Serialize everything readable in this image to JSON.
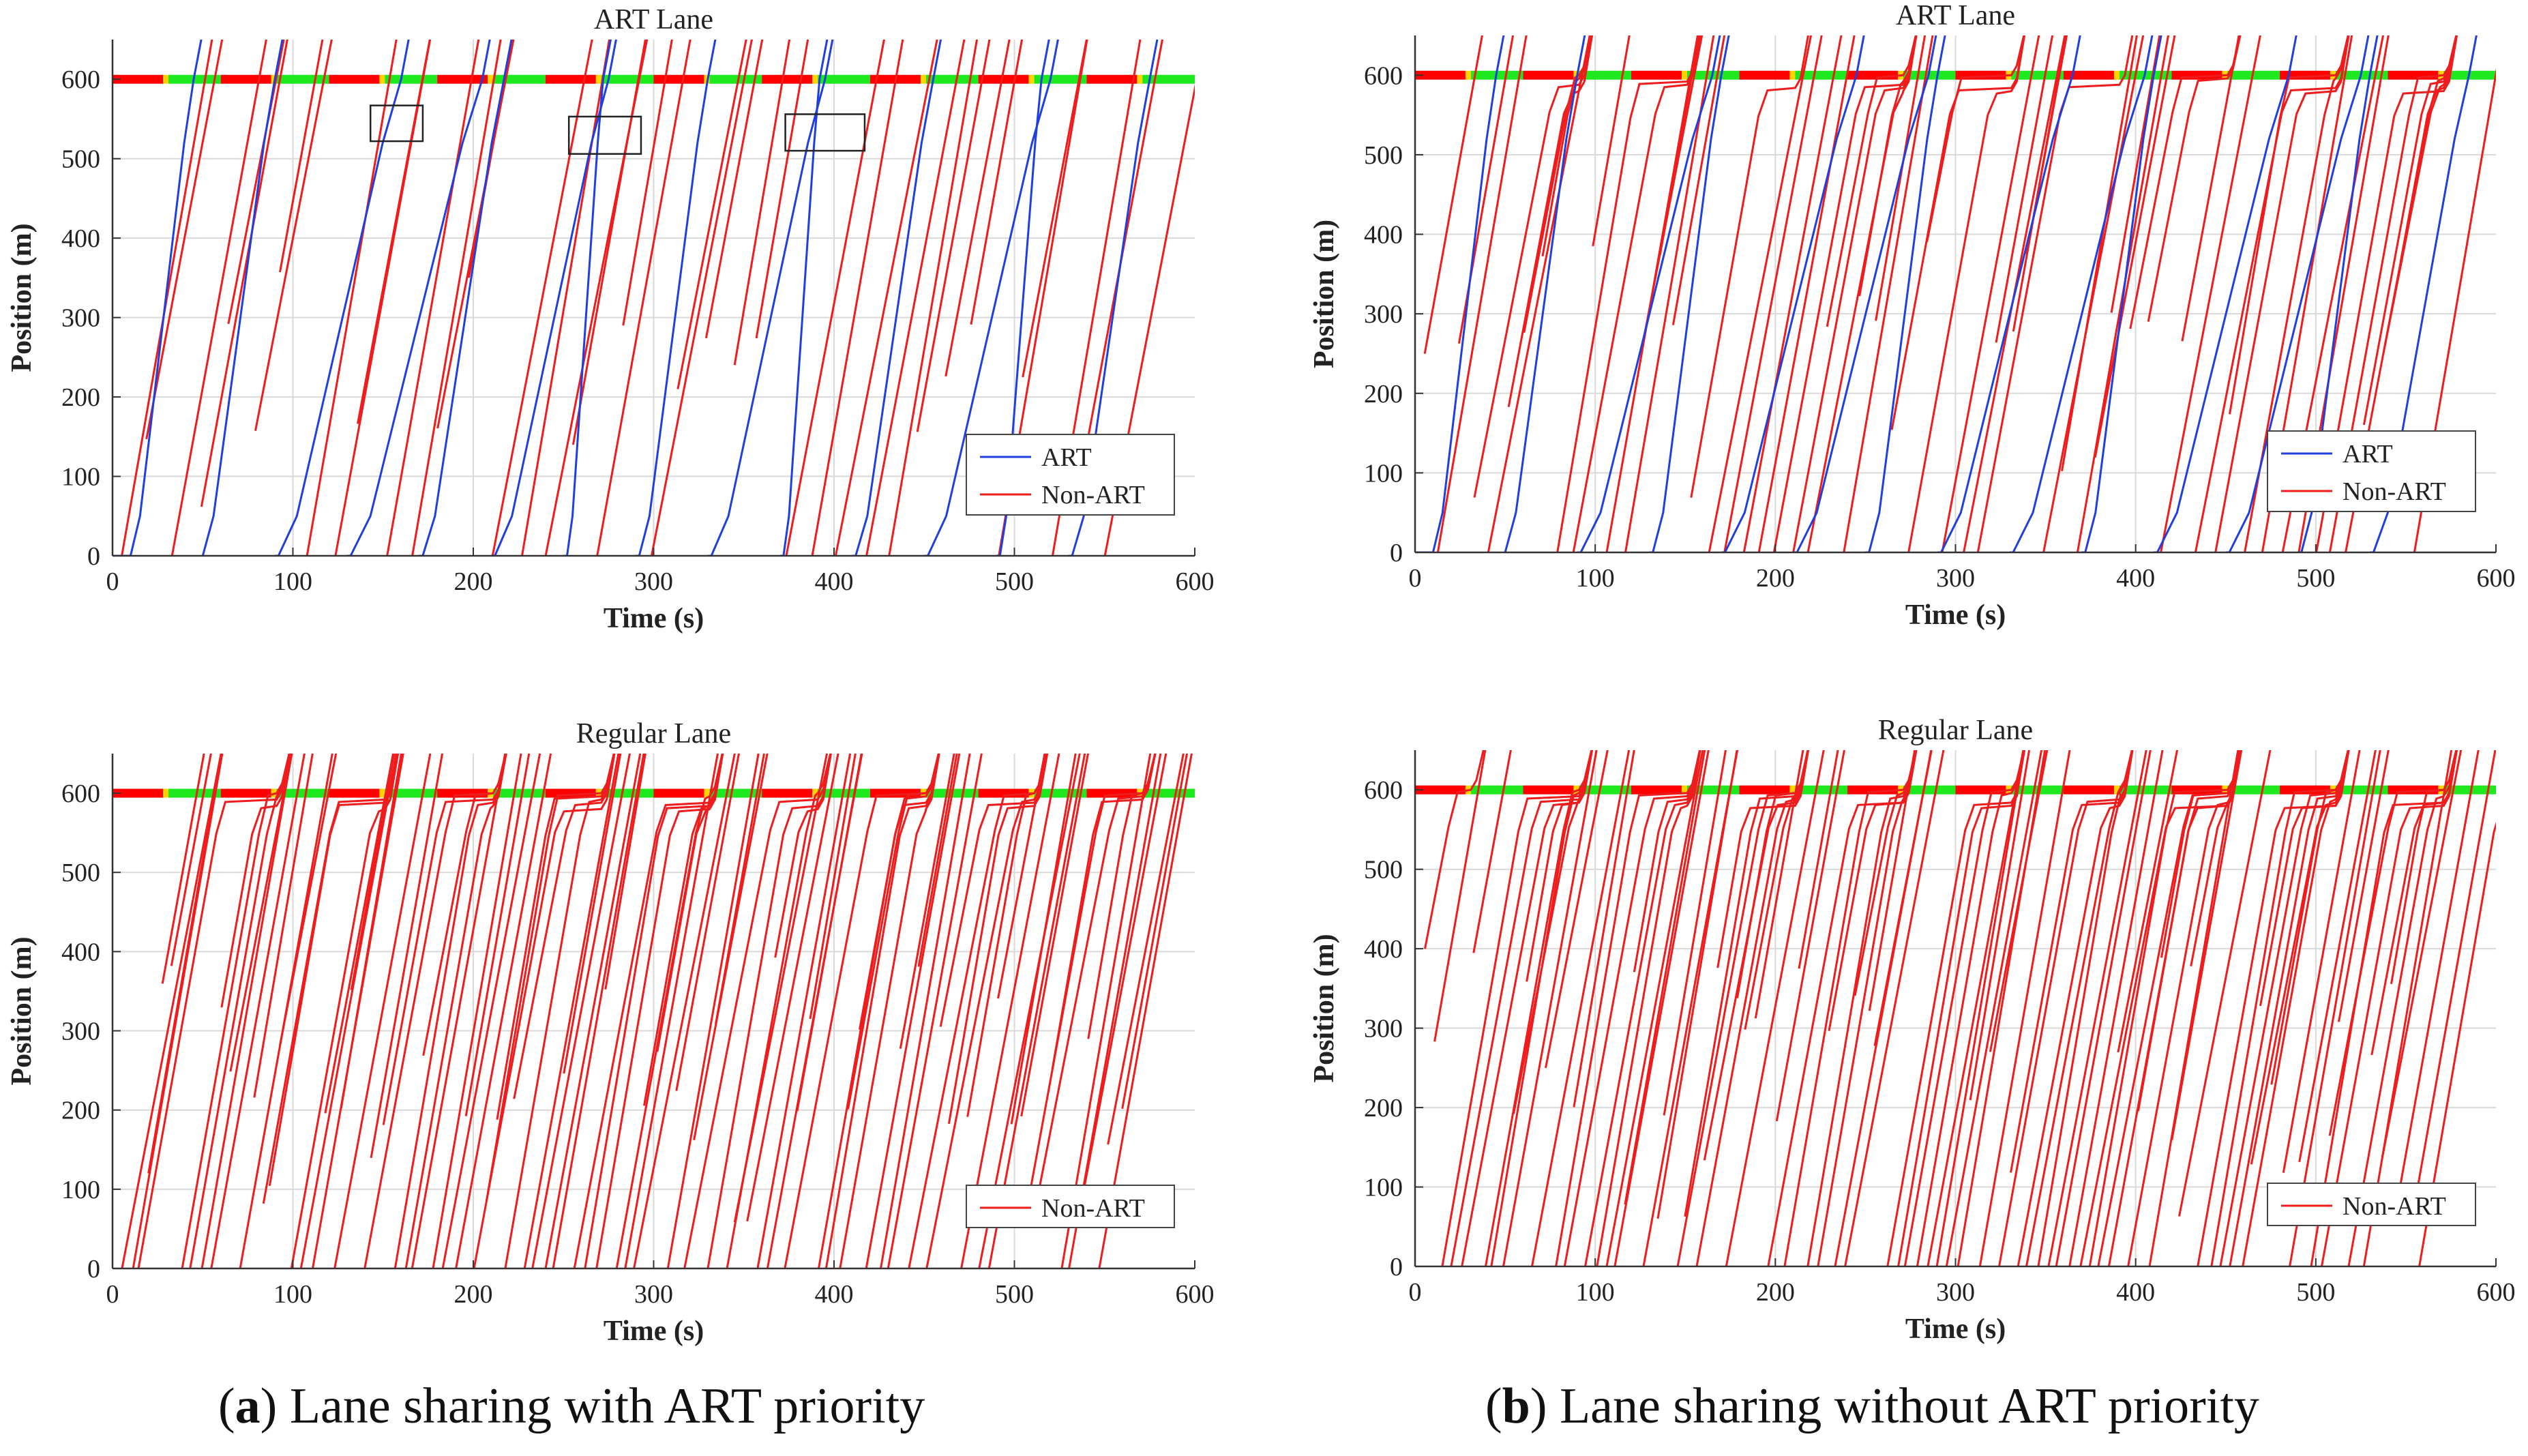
{
  "figure": {
    "captions": [
      {
        "letter": "a",
        "text": " Lane sharing with ART priority"
      },
      {
        "letter": "b",
        "text": " Lane sharing without ART priority"
      }
    ],
    "paren_open": "(",
    "paren_close": ")"
  },
  "colors": {
    "art": "#1f3fe0",
    "non_art": "#ee1c1c",
    "signal_red": "#ff0000",
    "signal_green": "#1ee81e",
    "signal_yellow": "#ffd200",
    "grid": "#d9d9d9"
  },
  "chart_data": [
    {
      "id": "a-top",
      "type": "line",
      "title": "ART Lane",
      "xlabel": "Time (s)",
      "ylabel": "Position (m)",
      "xlim": [
        0,
        600
      ],
      "ylim": [
        0,
        650
      ],
      "xticks": [
        0,
        100,
        200,
        300,
        400,
        500,
        600
      ],
      "yticks": [
        0,
        100,
        200,
        300,
        400,
        500,
        600
      ],
      "grid": true,
      "legend_position": "bottom-right",
      "legend": [
        "ART",
        "Non-ART"
      ],
      "signal": {
        "position": 600,
        "cycle": 60,
        "red_duration": 28,
        "yellow_duration": 3,
        "start": 0
      },
      "art_trajectories": [
        {
          "dwell_start": 0,
          "depart": 10,
          "arrival_600": 45
        },
        {
          "dwell_start": 50,
          "depart": 50,
          "arrival_600": 90
        },
        {
          "dwell_start": 90,
          "depart": 92,
          "arrival_600": 160
        },
        {
          "dwell_start": 130,
          "depart": 132,
          "arrival_600": 205
        },
        {
          "dwell_start": 170,
          "depart": 172,
          "arrival_600": 217
        },
        {
          "dwell_start": 210,
          "depart": 212,
          "arrival_600": 275
        },
        {
          "dwell_start": 250,
          "depart": 252,
          "arrival_600": 272
        },
        {
          "dwell_start": 290,
          "depart": 292,
          "arrival_600": 330
        },
        {
          "dwell_start": 330,
          "depart": 332,
          "arrival_600": 395
        },
        {
          "dwell_start": 370,
          "depart": 372,
          "arrival_600": 392
        },
        {
          "dwell_start": 410,
          "depart": 412,
          "arrival_600": 455
        },
        {
          "dwell_start": 450,
          "depart": 452,
          "arrival_600": 520
        },
        {
          "dwell_start": 490,
          "depart": 492,
          "arrival_600": 515
        },
        {
          "dwell_start": 530,
          "depart": 532,
          "arrival_600": 575
        }
      ],
      "nonart_count": 38,
      "stopping": false,
      "annotations": [
        {
          "type": "box",
          "x": [
            143,
            172
          ],
          "y": [
            522,
            567
          ]
        },
        {
          "type": "box",
          "x": [
            253,
            293
          ],
          "y": [
            506,
            553
          ]
        },
        {
          "type": "box",
          "x": [
            373,
            417
          ],
          "y": [
            510,
            556
          ]
        }
      ]
    },
    {
      "id": "a-bottom",
      "type": "line",
      "title": "Regular Lane",
      "xlabel": "Time (s)",
      "ylabel": "Position (m)",
      "xlim": [
        0,
        600
      ],
      "ylim": [
        0,
        650
      ],
      "xticks": [
        0,
        100,
        200,
        300,
        400,
        500,
        600
      ],
      "yticks": [
        0,
        100,
        200,
        300,
        400,
        500,
        600
      ],
      "grid": true,
      "legend_position": "bottom-right",
      "legend": [
        "Non-ART"
      ],
      "signal": {
        "position": 600,
        "cycle": 60,
        "red_duration": 28,
        "yellow_duration": 3,
        "start": 0
      },
      "art_trajectories": [],
      "nonart_count": 100,
      "stopping": true,
      "annotations": []
    },
    {
      "id": "b-top",
      "type": "line",
      "title": "ART Lane",
      "xlabel": "Time (s)",
      "ylabel": "Position (m)",
      "xlim": [
        0,
        600
      ],
      "ylim": [
        0,
        650
      ],
      "xticks": [
        0,
        100,
        200,
        300,
        400,
        500,
        600
      ],
      "yticks": [
        0,
        100,
        200,
        300,
        400,
        500,
        600
      ],
      "grid": true,
      "legend_position": "bottom-right",
      "legend": [
        "ART",
        "Non-ART"
      ],
      "signal": {
        "position": 600,
        "cycle": 60,
        "red_duration": 28,
        "yellow_duration": 3,
        "start": 0
      },
      "art_trajectories": [
        {
          "dwell_start": 0,
          "depart": 10,
          "arrival_600": 45
        },
        {
          "dwell_start": 50,
          "depart": 50,
          "arrival_600": 90
        },
        {
          "dwell_start": 90,
          "depart": 92,
          "arrival_600": 165
        },
        {
          "dwell_start": 130,
          "depart": 132,
          "arrival_600": 170
        },
        {
          "dwell_start": 170,
          "depart": 172,
          "arrival_600": 245
        },
        {
          "dwell_start": 210,
          "depart": 212,
          "arrival_600": 285
        },
        {
          "dwell_start": 250,
          "depart": 252,
          "arrival_600": 290
        },
        {
          "dwell_start": 290,
          "depart": 292,
          "arrival_600": 365
        },
        {
          "dwell_start": 330,
          "depart": 332,
          "arrival_600": 405
        },
        {
          "dwell_start": 370,
          "depart": 372,
          "arrival_600": 410
        },
        {
          "dwell_start": 410,
          "depart": 412,
          "arrival_600": 485
        },
        {
          "dwell_start": 450,
          "depart": 452,
          "arrival_600": 525
        },
        {
          "dwell_start": 490,
          "depart": 492,
          "arrival_600": 530
        },
        {
          "dwell_start": 530,
          "depart": 532,
          "arrival_600": 585
        }
      ],
      "nonart_count": 60,
      "stopping": true,
      "annotations": []
    },
    {
      "id": "b-bottom",
      "type": "line",
      "title": "Regular Lane",
      "xlabel": "Time (s)",
      "ylabel": "Position (m)",
      "xlim": [
        0,
        600
      ],
      "ylim": [
        0,
        650
      ],
      "xticks": [
        0,
        100,
        200,
        300,
        400,
        500,
        600
      ],
      "yticks": [
        0,
        100,
        200,
        300,
        400,
        500,
        600
      ],
      "grid": true,
      "legend_position": "bottom-right",
      "legend": [
        "Non-ART"
      ],
      "signal": {
        "position": 600,
        "cycle": 60,
        "red_duration": 28,
        "yellow_duration": 3,
        "start": 0
      },
      "art_trajectories": [],
      "nonart_count": 100,
      "stopping": true,
      "annotations": []
    }
  ]
}
